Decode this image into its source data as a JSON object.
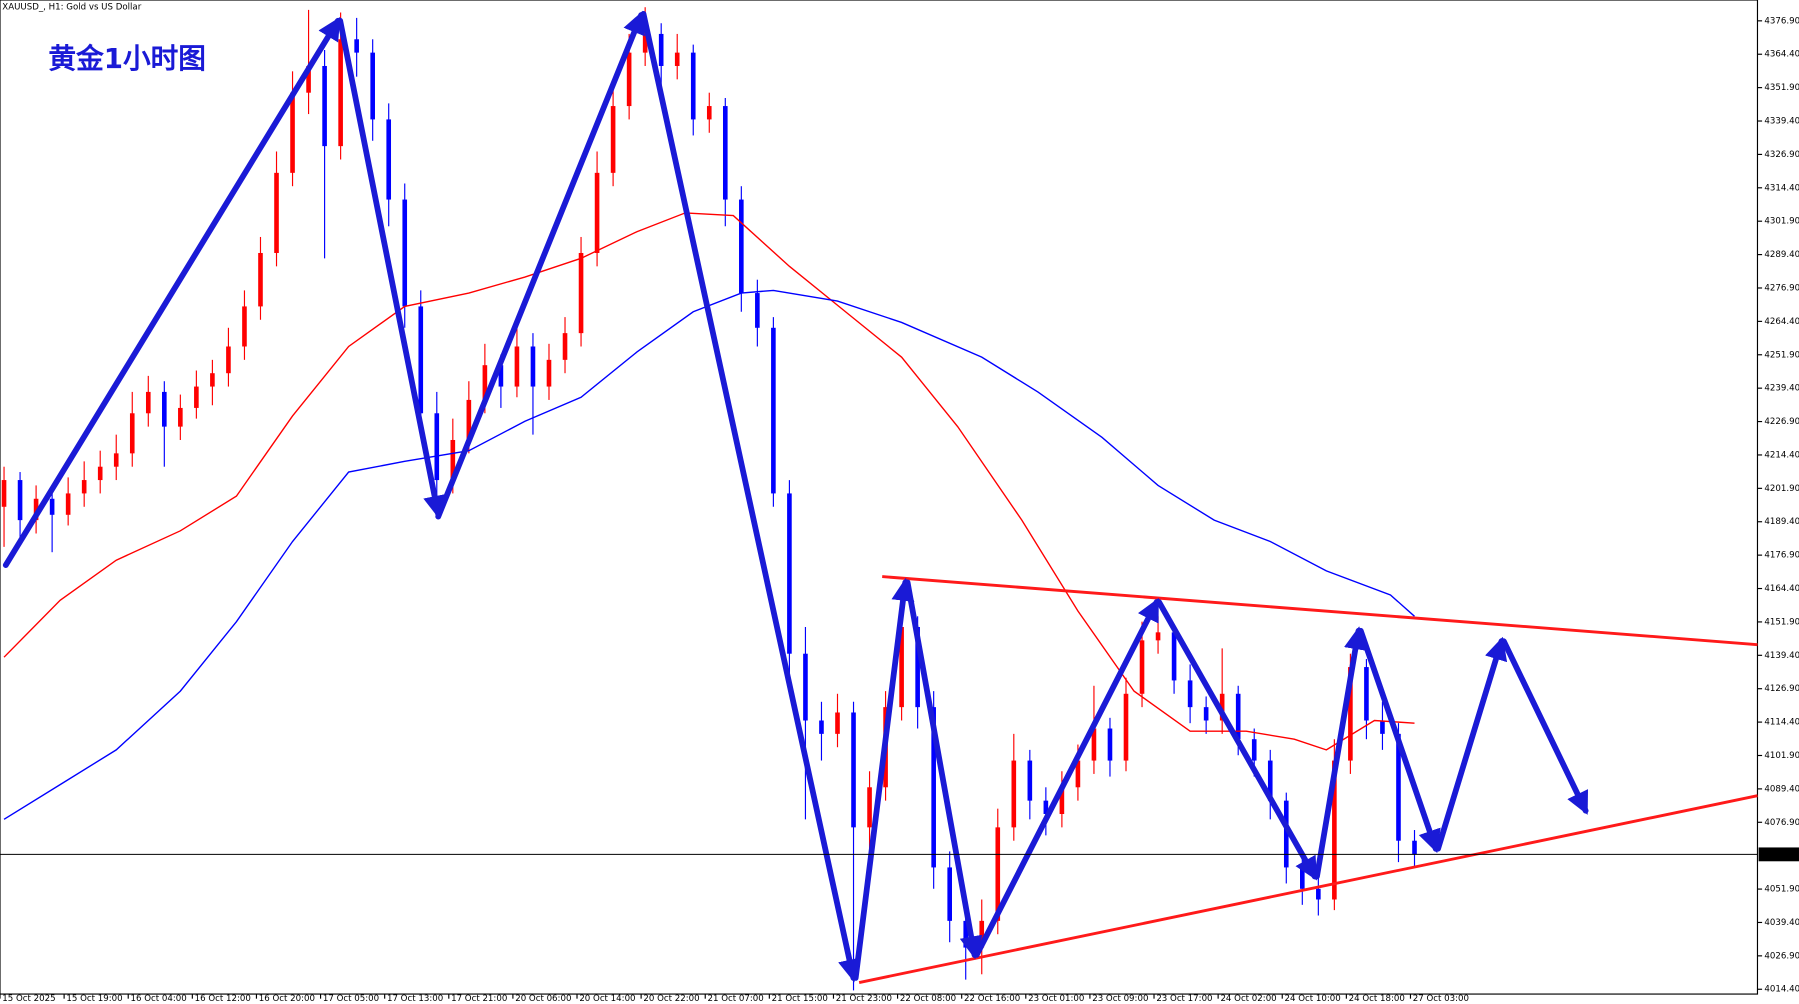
{
  "chart_data": {
    "type": "candlestick",
    "title": "XAUUSD_, H1: Gold vs US Dollar",
    "annotation": "黄金1小时图",
    "up_color": "#ff0000",
    "down_color": "#0000ff",
    "x": [
      0,
      2,
      4,
      6,
      8,
      10,
      12,
      14,
      16,
      18,
      20,
      22,
      24,
      26,
      28,
      30,
      32,
      34,
      36,
      38,
      40,
      42,
      44,
      46,
      48,
      50,
      52,
      54,
      56,
      58,
      60,
      62,
      64,
      66,
      68,
      70,
      72,
      74,
      76,
      78,
      80,
      82,
      84,
      86,
      88,
      90,
      92,
      94,
      96,
      98,
      100,
      102,
      104,
      106,
      108,
      110,
      112,
      114,
      116,
      118,
      120,
      122,
      124,
      126,
      128,
      130,
      132,
      134,
      136,
      138,
      140,
      142,
      144,
      146,
      148,
      150,
      152,
      154,
      156,
      158,
      160,
      162,
      164,
      166,
      168,
      170,
      172,
      174,
      176
    ],
    "ohlc": [
      [
        4195,
        4210,
        4180,
        4205
      ],
      [
        4205,
        4208,
        4182,
        4190
      ],
      [
        4190,
        4203,
        4185,
        4198
      ],
      [
        4198,
        4202,
        4178,
        4192
      ],
      [
        4192,
        4206,
        4188,
        4200
      ],
      [
        4200,
        4212,
        4195,
        4205
      ],
      [
        4205,
        4216,
        4200,
        4210
      ],
      [
        4210,
        4222,
        4205,
        4215
      ],
      [
        4215,
        4238,
        4210,
        4230
      ],
      [
        4230,
        4244,
        4225,
        4238
      ],
      [
        4238,
        4242,
        4210,
        4225
      ],
      [
        4225,
        4237,
        4220,
        4232
      ],
      [
        4232,
        4246,
        4228,
        4240
      ],
      [
        4240,
        4250,
        4233,
        4245
      ],
      [
        4245,
        4262,
        4240,
        4255
      ],
      [
        4255,
        4276,
        4250,
        4270
      ],
      [
        4270,
        4296,
        4265,
        4290
      ],
      [
        4290,
        4328,
        4285,
        4320
      ],
      [
        4320,
        4358,
        4315,
        4350
      ],
      [
        4350,
        4381,
        4342,
        4360
      ],
      [
        4360,
        4366,
        4288,
        4330
      ],
      [
        4330,
        4380,
        4325,
        4370
      ],
      [
        4370,
        4378,
        4356,
        4365
      ],
      [
        4365,
        4370,
        4332,
        4340
      ],
      [
        4340,
        4346,
        4300,
        4310
      ],
      [
        4310,
        4316,
        4262,
        4270
      ],
      [
        4270,
        4276,
        4222,
        4230
      ],
      [
        4230,
        4238,
        4198,
        4205
      ],
      [
        4205,
        4228,
        4200,
        4220
      ],
      [
        4220,
        4242,
        4215,
        4235
      ],
      [
        4235,
        4256,
        4230,
        4248
      ],
      [
        4248,
        4252,
        4232,
        4240
      ],
      [
        4240,
        4262,
        4236,
        4255
      ],
      [
        4255,
        4260,
        4222,
        4240
      ],
      [
        4240,
        4256,
        4235,
        4250
      ],
      [
        4250,
        4266,
        4245,
        4260
      ],
      [
        4260,
        4296,
        4255,
        4290
      ],
      [
        4290,
        4328,
        4285,
        4320
      ],
      [
        4320,
        4352,
        4315,
        4345
      ],
      [
        4345,
        4372,
        4340,
        4365
      ],
      [
        4365,
        4382,
        4360,
        4372
      ],
      [
        4372,
        4376,
        4352,
        4360
      ],
      [
        4360,
        4372,
        4355,
        4365
      ],
      [
        4365,
        4368,
        4334,
        4340
      ],
      [
        4340,
        4350,
        4335,
        4345
      ],
      [
        4345,
        4348,
        4300,
        4310
      ],
      [
        4310,
        4315,
        4268,
        4275
      ],
      [
        4275,
        4280,
        4255,
        4262
      ],
      [
        4262,
        4266,
        4195,
        4200
      ],
      [
        4200,
        4205,
        4130,
        4140
      ],
      [
        4140,
        4150,
        4078,
        4115
      ],
      [
        4115,
        4122,
        4100,
        4110
      ],
      [
        4110,
        4125,
        4105,
        4118
      ],
      [
        4118,
        4122,
        4014,
        4075
      ],
      [
        4075,
        4096,
        4060,
        4090
      ],
      [
        4090,
        4126,
        4085,
        4120
      ],
      [
        4120,
        4157,
        4115,
        4150
      ],
      [
        4150,
        4154,
        4112,
        4120
      ],
      [
        4120,
        4126,
        4052,
        4060
      ],
      [
        4060,
        4066,
        4032,
        4040
      ],
      [
        4040,
        4045,
        4018,
        4030
      ],
      [
        4030,
        4048,
        4020,
        4040
      ],
      [
        4040,
        4082,
        4035,
        4075
      ],
      [
        4075,
        4110,
        4070,
        4100
      ],
      [
        4100,
        4104,
        4078,
        4085
      ],
      [
        4085,
        4090,
        4072,
        4080
      ],
      [
        4080,
        4096,
        4075,
        4090
      ],
      [
        4090,
        4106,
        4085,
        4100
      ],
      [
        4100,
        4128,
        4095,
        4112
      ],
      [
        4112,
        4116,
        4094,
        4100
      ],
      [
        4100,
        4131,
        4096,
        4125
      ],
      [
        4125,
        4152,
        4120,
        4145
      ],
      [
        4145,
        4154,
        4140,
        4148
      ],
      [
        4148,
        4151,
        4125,
        4130
      ],
      [
        4130,
        4136,
        4114,
        4120
      ],
      [
        4120,
        4124,
        4110,
        4115
      ],
      [
        4115,
        4142,
        4110,
        4125
      ],
      [
        4125,
        4128,
        4102,
        4108
      ],
      [
        4108,
        4112,
        4094,
        4100
      ],
      [
        4100,
        4104,
        4078,
        4085
      ],
      [
        4085,
        4088,
        4054,
        4060
      ],
      [
        4060,
        4066,
        4046,
        4052
      ],
      [
        4052,
        4058,
        4042,
        4048
      ],
      [
        4048,
        4108,
        4044,
        4100
      ],
      [
        4100,
        4140,
        4095,
        4135
      ],
      [
        4135,
        4138,
        4108,
        4115
      ],
      [
        4115,
        4122,
        4104,
        4110
      ],
      [
        4110,
        4114,
        4062,
        4070
      ],
      [
        4070,
        4074,
        4060,
        4065
      ]
    ],
    "series": [
      {
        "color": "#ff0000",
        "x": [
          0,
          7,
          14,
          22,
          29,
          36,
          43,
          50,
          58,
          65,
          72,
          79,
          85,
          91,
          98,
          105,
          112,
          119,
          127,
          134,
          141,
          148,
          155,
          161,
          165,
          171,
          176
        ],
        "values": [
          4138.7,
          4160,
          4175,
          4186,
          4199,
          4229,
          4255,
          4270,
          4275,
          4281,
          4288,
          4298,
          4305,
          4304,
          4285,
          4268,
          4251,
          4225,
          4190,
          4156,
          4126,
          4111,
          4111,
          4108,
          4104,
          4115,
          4114
        ]
      },
      {
        "color": "#0000ff",
        "x": [
          0,
          7,
          14,
          22,
          29,
          36,
          43,
          50,
          58,
          65,
          72,
          79,
          86,
          92,
          96,
          104,
          112,
          122,
          129,
          137,
          144,
          151,
          158,
          165,
          173,
          176
        ],
        "values": [
          4078,
          4091,
          4104,
          4126,
          4152,
          4182,
          4208,
          4212,
          4216,
          4227,
          4236,
          4253,
          4268,
          4275,
          4276,
          4272,
          4264,
          4251,
          4238,
          4221,
          4203,
          4190,
          4182,
          4171,
          4162,
          4154
        ]
      }
    ],
    "current_price": 4064.89,
    "xlim": [
      0,
      219.3
    ],
    "ylim": [
      4012.6,
      4384.7
    ],
    "yticks": [
      {
        "value": 4376.9,
        "label": "4376.90"
      },
      {
        "value": 4364.4,
        "label": "4364.40"
      },
      {
        "value": 4351.9,
        "label": "4351.90"
      },
      {
        "value": 4339.4,
        "label": "4339.40"
      },
      {
        "value": 4326.9,
        "label": "4326.90"
      },
      {
        "value": 4314.4,
        "label": "4314.40"
      },
      {
        "value": 4301.9,
        "label": "4301.90"
      },
      {
        "value": 4289.4,
        "label": "4289.40"
      },
      {
        "value": 4276.9,
        "label": "4276.90"
      },
      {
        "value": 4264.4,
        "label": "4264.40"
      },
      {
        "value": 4251.9,
        "label": "4251.90"
      },
      {
        "value": 4239.4,
        "label": "4239.40"
      },
      {
        "value": 4226.9,
        "label": "4226.90"
      },
      {
        "value": 4214.4,
        "label": "4214.40"
      },
      {
        "value": 4201.9,
        "label": "4201.90"
      },
      {
        "value": 4189.4,
        "label": "4189.40"
      },
      {
        "value": 4176.9,
        "label": "4176.90"
      },
      {
        "value": 4164.4,
        "label": "4164.40"
      },
      {
        "value": 4151.9,
        "label": "4151.90"
      },
      {
        "value": 4139.4,
        "label": "4139.40"
      },
      {
        "value": 4126.9,
        "label": "4126.90"
      },
      {
        "value": 4114.4,
        "label": "4114.40"
      },
      {
        "value": 4101.9,
        "label": "4101.90"
      },
      {
        "value": 4089.4,
        "label": "4089.40"
      },
      {
        "value": 4076.9,
        "label": "4076.90"
      },
      {
        "value": 4051.9,
        "label": "4051.90"
      },
      {
        "value": 4039.4,
        "label": "4039.40"
      },
      {
        "value": 4026.9,
        "label": "4026.90"
      },
      {
        "value": 4014.4,
        "label": "4014.40"
      }
    ],
    "xticks": [
      {
        "value": 0,
        "label": "15 Oct 2025"
      },
      {
        "value": 8,
        "label": "15 Oct 19:00"
      },
      {
        "value": 16,
        "label": "16 Oct 04:00"
      },
      {
        "value": 24,
        "label": "16 Oct 12:00"
      },
      {
        "value": 32,
        "label": "16 Oct 20:00"
      },
      {
        "value": 40,
        "label": "17 Oct 05:00"
      },
      {
        "value": 48,
        "label": "17 Oct 13:00"
      },
      {
        "value": 56,
        "label": "17 Oct 21:00"
      },
      {
        "value": 64,
        "label": "20 Oct 06:00"
      },
      {
        "value": 72,
        "label": "20 Oct 14:00"
      },
      {
        "value": 80,
        "label": "20 Oct 22:00"
      },
      {
        "value": 88,
        "label": "21 Oct 07:00"
      },
      {
        "value": 96,
        "label": "21 Oct 15:00"
      },
      {
        "value": 104,
        "label": "21 Oct 23:00"
      },
      {
        "value": 112,
        "label": "22 Oct 08:00"
      },
      {
        "value": 120,
        "label": "22 Oct 16:00"
      },
      {
        "value": 128,
        "label": "23 Oct 01:00"
      },
      {
        "value": 136,
        "label": "23 Oct 09:00"
      },
      {
        "value": 144,
        "label": "23 Oct 17:00"
      },
      {
        "value": 152,
        "label": "24 Oct 02:00"
      },
      {
        "value": 160,
        "label": "24 Oct 10:00"
      },
      {
        "value": 168,
        "label": "24 Oct 18:00"
      },
      {
        "value": 176,
        "label": "27 Oct 03:00"
      }
    ]
  }
}
